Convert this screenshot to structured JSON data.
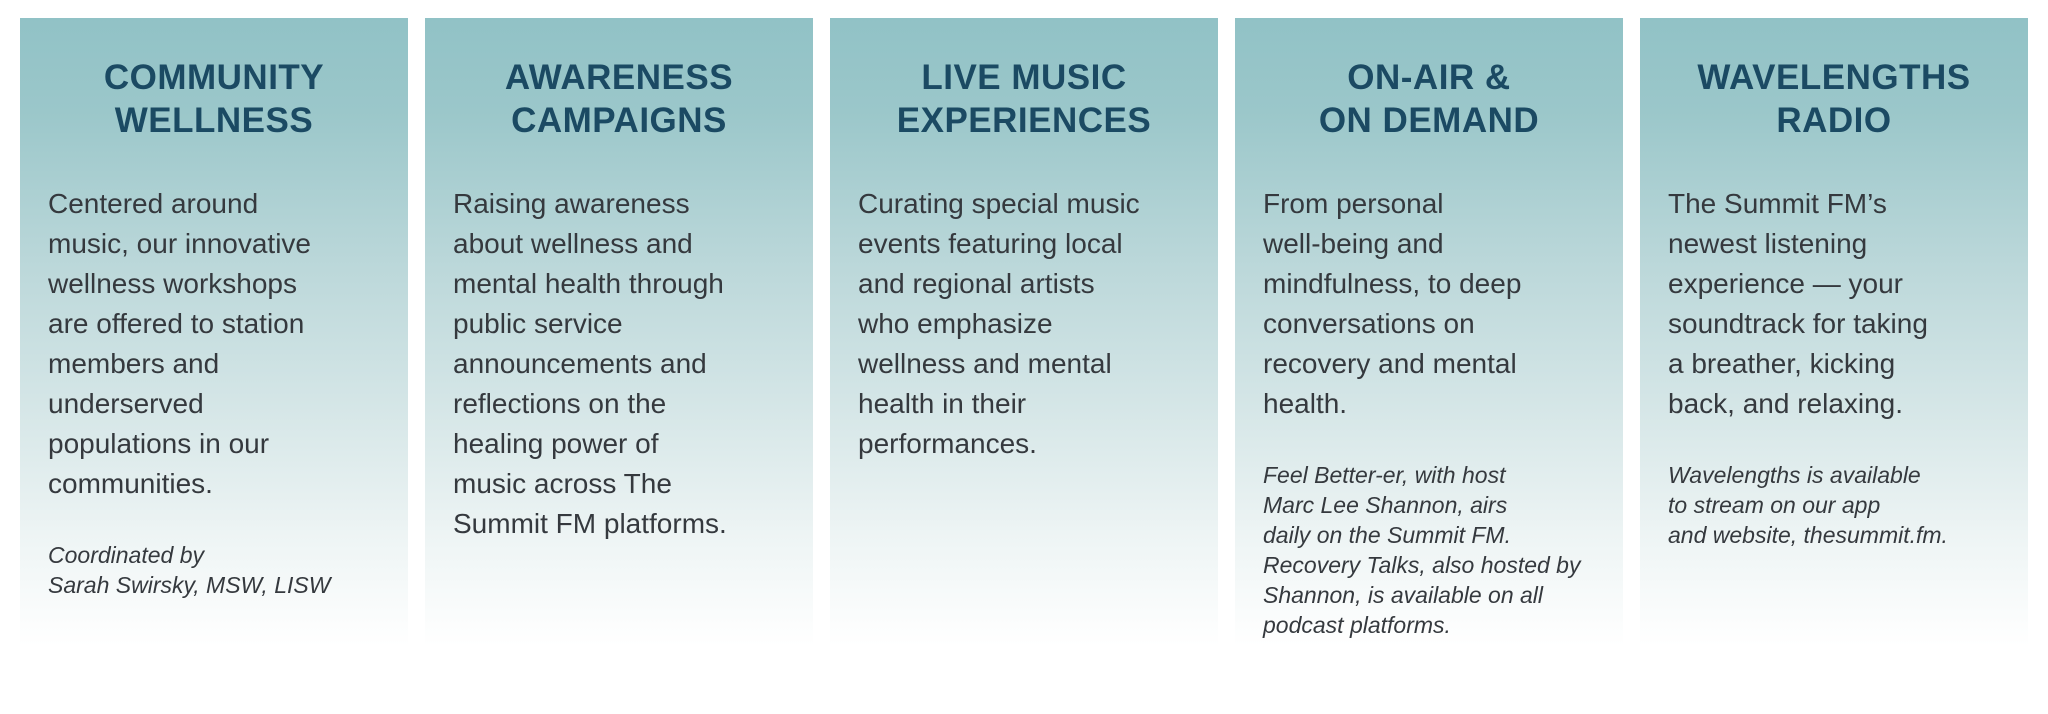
{
  "theme": {
    "card_top_color": "#91c2c6",
    "card_bottom_color": "#ffffff",
    "heading_color": "#1b4a63",
    "text_color": "#35393e"
  },
  "section": {
    "cards": [
      {
        "id": "community-wellness",
        "title": "COMMUNITY\nWELLNESS",
        "body": "Centered around\nmusic, our innovative\nwellness workshops\nare offered to station\nmembers and\nunderserved\npopulations in our\ncommunities.",
        "note": "Coordinated by\nSarah Swirsky, MSW, LISW"
      },
      {
        "id": "awareness-campaigns",
        "title": "AWARENESS\nCAMPAIGNS",
        "body": "Raising awareness\nabout wellness and\nmental health through\npublic service\nannouncements and\nreflections on the\nhealing power of\nmusic across The\nSummit FM platforms."
      },
      {
        "id": "live-music-experiences",
        "title": "LIVE MUSIC\nEXPERIENCES",
        "body": "Curating special music\nevents featuring local\nand regional artists\nwho emphasize\nwellness and mental\nhealth in their\nperformances."
      },
      {
        "id": "on-air-on-demand",
        "title": "ON-AIR &\nON DEMAND",
        "body": "From personal\nwell-being and\nmindfulness, to deep\nconversations on\nrecovery and mental\nhealth.",
        "note": "Feel Better-er, with host\nMarc Lee Shannon, airs\ndaily on the Summit FM.\nRecovery Talks, also hosted by\nShannon, is available on all\npodcast platforms."
      },
      {
        "id": "wavelengths-radio",
        "title": "WAVELENGTHS\nRADIO",
        "body": "The Summit FM’s\nnewest listening\nexperience — your\nsoundtrack for taking\na breather, kicking\nback, and relaxing.",
        "note": "Wavelengths is available\nto stream on our app\nand website, thesummit.fm."
      }
    ]
  }
}
